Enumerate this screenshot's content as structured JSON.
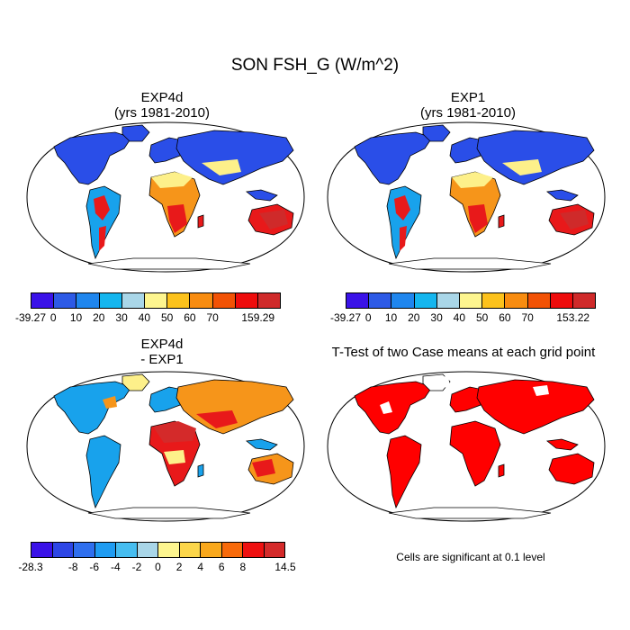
{
  "title": "SON FSH_G (W/m^2)",
  "panels": {
    "top_left": {
      "title_line1": "EXP4d",
      "title_line2": "(yrs 1981-2010)"
    },
    "top_right": {
      "title_line1": "EXP1",
      "title_line2": "(yrs 1981-2010)"
    },
    "bottom_left": {
      "title_line1": "EXP4d",
      "title_line2": "- EXP1"
    },
    "bottom_right": {
      "title_line1": "T-Test of two Case means at each grid point",
      "note": "Cells are significant at 0.1 level"
    }
  },
  "colorbars": {
    "exp4d": {
      "colors": [
        "#3a12e8",
        "#2d5ae6",
        "#1f86ee",
        "#14b6ef",
        "#a9d6e8",
        "#fdf58f",
        "#fcc21c",
        "#f88c10",
        "#f25205",
        "#ee0c0c",
        "#cf2a2a"
      ],
      "labels": [
        "-39.27",
        "0",
        "10",
        "20",
        "30",
        "40",
        "50",
        "60",
        "70",
        "",
        "159.29"
      ]
    },
    "exp1": {
      "colors": [
        "#3a12e8",
        "#2d5ae6",
        "#1f86ee",
        "#14b6ef",
        "#a9d6e8",
        "#fdf58f",
        "#fcc21c",
        "#f88c10",
        "#f25205",
        "#ee0c0c",
        "#cf2a2a"
      ],
      "labels": [
        "-39.27",
        "0",
        "10",
        "20",
        "30",
        "40",
        "50",
        "60",
        "70",
        "",
        "153.22"
      ]
    },
    "diff": {
      "colors": [
        "#3a12e8",
        "#2d46e6",
        "#2f6fee",
        "#1f9cf2",
        "#46bdf0",
        "#a9d6e8",
        "#fdf58f",
        "#fcd64a",
        "#f9a81c",
        "#f86a0a",
        "#ee1010",
        "#d42a2a"
      ],
      "labels": [
        "-28.3",
        "",
        "-8",
        "-6",
        "-4",
        "-2",
        "0",
        "2",
        "4",
        "6",
        "8",
        "",
        "14.5"
      ]
    }
  },
  "colors": {
    "cold": "#2a4ee8",
    "cool": "#18a2ec",
    "mild": "#fdf08a",
    "warm": "#f6951a",
    "hot": "#e8191a",
    "significant": "#ff0000",
    "outline": "#000000"
  }
}
